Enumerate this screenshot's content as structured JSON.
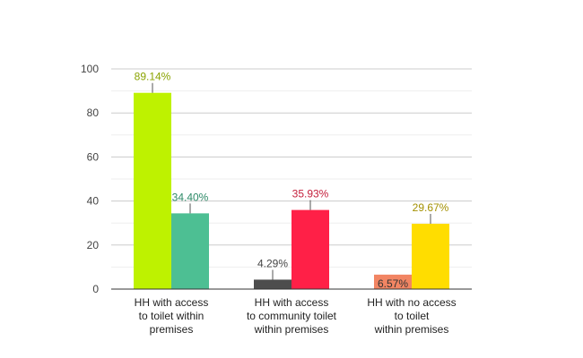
{
  "chart_data": {
    "type": "bar",
    "categories": [
      [
        "HH with access",
        "to toilet within",
        "premises"
      ],
      [
        "HH with access",
        "to community toilet",
        "within premises"
      ],
      [
        "HH with no access",
        "to toilet",
        "within premises"
      ]
    ],
    "ylim": [
      0,
      100
    ],
    "yticks": [
      "0",
      "20",
      "40",
      "60",
      "80",
      "100"
    ],
    "grid": true,
    "bars": [
      [
        {
          "value": 89.14,
          "label": "89.14%",
          "color": "#bef200",
          "label_color": "#8aa300"
        },
        {
          "value": 34.4,
          "label": "34.40%",
          "color": "#4dbf93",
          "label_color": "#2e8a68"
        }
      ],
      [
        {
          "value": 4.29,
          "label": "4.29%",
          "color": "#4d4d4d",
          "label_color": "#444444"
        },
        {
          "value": 35.93,
          "label": "35.93%",
          "color": "#ff2047",
          "label_color": "#c4203c"
        }
      ],
      [
        {
          "value": 6.57,
          "label": "6.57%",
          "color": "#f28563",
          "label_color": "#333333",
          "label_inside": true
        },
        {
          "value": 29.67,
          "label": "29.67%",
          "color": "#ffdd00",
          "label_color": "#a39000"
        }
      ]
    ]
  }
}
